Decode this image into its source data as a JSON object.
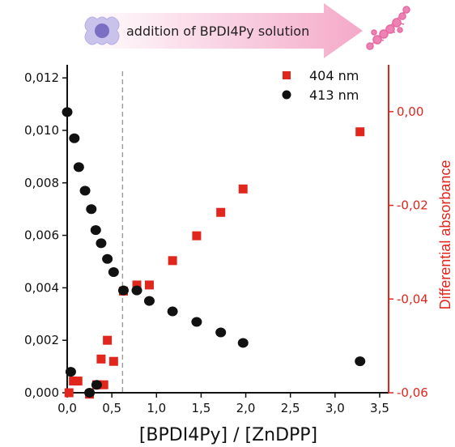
{
  "banner": {
    "text": "addition of BPDI4Py solution",
    "arrow_color": "#f4a9c8",
    "cell_icon": "cell-icon",
    "assembly_icon": "molecular-assembly-icon"
  },
  "chart_data": {
    "type": "scatter",
    "title": "",
    "xlabel": "[BPDI4Py] / [ZnDPP]",
    "ylabel_left": "",
    "ylabel_right": "Differential absorbance",
    "xlim": [
      0,
      3.6
    ],
    "ylim_left": [
      0,
      0.0125
    ],
    "ylim_right": [
      -0.06,
      0.01
    ],
    "x_ticks": [
      "0,0",
      "0,5",
      "1,0",
      "1,5",
      "2,0",
      "2,5",
      "3,0",
      "3,5"
    ],
    "y_ticks_left": [
      "0,000",
      "0,002",
      "0,004",
      "0,006",
      "0,008",
      "0,010",
      "0,012"
    ],
    "y_ticks_right": [
      "0,00",
      "-0,02",
      "-0,04",
      "-0,06"
    ],
    "reference_line_x": 0.62,
    "legend_position": "top-right",
    "colors": {
      "left_axis": "#111111",
      "right_axis": "#e0261d"
    },
    "series": [
      {
        "name": "404 nm",
        "marker": "square",
        "color": "#e0261d",
        "axis": "right",
        "x": [
          0.02,
          0.07,
          0.12,
          0.25,
          0.33,
          0.38,
          0.41,
          0.45,
          0.52,
          0.63,
          0.78,
          0.92,
          1.18,
          1.45,
          1.72,
          1.97,
          3.28
        ],
        "y": [
          -0.06,
          -0.0575,
          -0.0575,
          -0.0603,
          -0.0583,
          -0.0528,
          -0.0583,
          -0.0488,
          -0.0533,
          -0.0383,
          -0.037,
          -0.037,
          -0.0318,
          -0.0265,
          -0.0215,
          -0.0165,
          -0.0043
        ]
      },
      {
        "name": "413 nm",
        "marker": "circle",
        "color": "#111111",
        "axis": "left",
        "x": [
          0.0,
          0.04,
          0.08,
          0.13,
          0.2,
          0.27,
          0.32,
          0.38,
          0.45,
          0.52,
          0.63,
          0.78,
          0.92,
          1.18,
          1.45,
          1.72,
          1.97,
          3.28
        ],
        "y": [
          0.0107,
          0.0008,
          0.0097,
          0.0086,
          0.0077,
          0.007,
          0.0062,
          0.0057,
          0.0051,
          0.0046,
          0.0039,
          0.0039,
          0.0035,
          0.0031,
          0.0027,
          0.0023,
          0.0019,
          0.0012
        ]
      },
      {
        "name": "",
        "marker": "circle",
        "color": "#111111",
        "axis": "left",
        "x": [
          0.25,
          0.33
        ],
        "y": [
          0.0,
          0.0003
        ]
      }
    ]
  }
}
